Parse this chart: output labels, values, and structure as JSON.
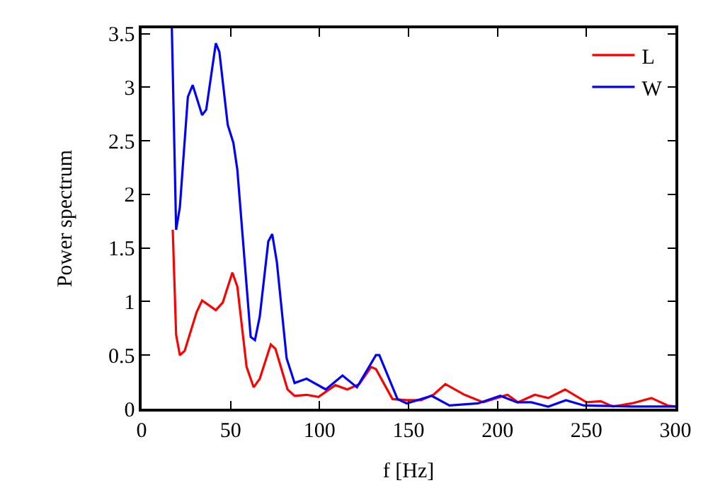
{
  "chart_data": {
    "type": "line",
    "xlabel": "f [Hz]",
    "ylabel": "Power spectrum",
    "xlim": [
      0,
      300
    ],
    "xticks": [
      0,
      50,
      100,
      150,
      200,
      250,
      300
    ],
    "ylim": [
      0,
      3.55
    ],
    "yticks": [
      0,
      0.5,
      1,
      1.5,
      2,
      2.5,
      3,
      3.5
    ],
    "legend": "top right",
    "marker": "none",
    "line_style": "solid",
    "series": [
      {
        "name": "L",
        "color": "#ff0000",
        "x": [
          17.5,
          19.4,
          21.5,
          24.2,
          30.9,
          34,
          41.7,
          45.6,
          51,
          53.8,
          59,
          63,
          66.4,
          72.6,
          75.2,
          82,
          86,
          92.7,
          99.4,
          108.9,
          115.6,
          122.3,
          129,
          131.7,
          141,
          149,
          157,
          164,
          170.7,
          181.5,
          192,
          205.6,
          211.5,
          221,
          228.5,
          238,
          250,
          258,
          264.8,
          275.5,
          286.5,
          295.7,
          300
        ],
        "values": [
          1.67,
          0.69,
          0.5,
          0.54,
          0.9,
          1.01,
          0.92,
          0.99,
          1.27,
          1.14,
          0.39,
          0.2,
          0.28,
          0.6,
          0.56,
          0.18,
          0.12,
          0.13,
          0.11,
          0.22,
          0.18,
          0.23,
          0.39,
          0.37,
          0.09,
          0.08,
          0.08,
          0.13,
          0.23,
          0.13,
          0.06,
          0.13,
          0.06,
          0.13,
          0.1,
          0.18,
          0.06,
          0.07,
          0.02,
          0.05,
          0.1,
          0.03,
          0.02
        ]
      },
      {
        "name": "W",
        "color": "#0000ff",
        "x": [
          17,
          19.4,
          21.5,
          26,
          28.7,
          34,
          36.3,
          41.7,
          43.7,
          48.4,
          51.6,
          53.8,
          61.3,
          63.7,
          66.4,
          71.2,
          73.4,
          76,
          81.5,
          86,
          92.7,
          103.5,
          112.9,
          121,
          131.7,
          133.6,
          143.8,
          149,
          163,
          173,
          189,
          201.6,
          211,
          219,
          228.5,
          238.5,
          248.6,
          275.5,
          294,
          300
        ],
        "values": [
          3.55,
          1.67,
          1.88,
          2.91,
          3.02,
          2.74,
          2.79,
          3.41,
          3.33,
          2.65,
          2.48,
          2.23,
          0.67,
          0.64,
          0.86,
          1.56,
          1.63,
          1.37,
          0.47,
          0.24,
          0.28,
          0.18,
          0.31,
          0.2,
          0.5,
          0.5,
          0.09,
          0.05,
          0.12,
          0.03,
          0.05,
          0.12,
          0.06,
          0.06,
          0.02,
          0.08,
          0.03,
          0.02,
          0.02,
          0.02
        ]
      }
    ]
  }
}
